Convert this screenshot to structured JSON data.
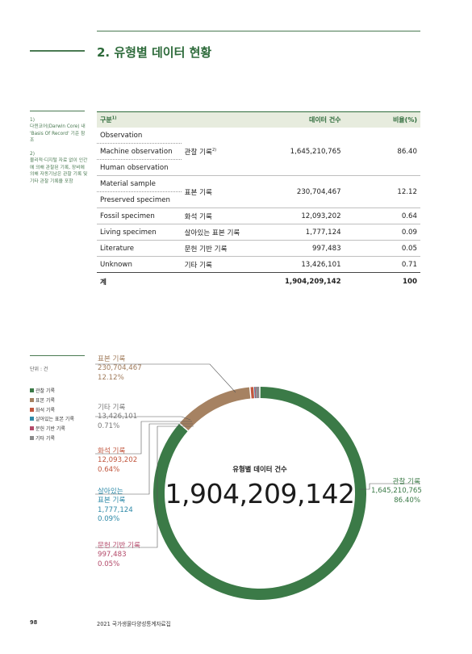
{
  "section": {
    "title": "2. 유형별 데이터 현황"
  },
  "notes": {
    "n1_num": "1)",
    "n1_text": "다윈코어(Darwin Core) 내 'Basis Of Record' 기준 참조",
    "n2_num": "2)",
    "n2_text": "물리적·디지털 자료 없이 인간에 의해 관찰된 기록, 장비에 의해 자동기남은 관찰 기록 및 기타 관찰 기록을 포함"
  },
  "table": {
    "headers": {
      "category": "구분",
      "category_sup": "1)",
      "count": "데이터 건수",
      "ratio": "비율(%)"
    },
    "obs_rows": [
      "Observation",
      "Machine observation",
      "Human observation"
    ],
    "obs_kor": "관찰 기록",
    "obs_kor_sup": "2)",
    "obs_count": "1,645,210,765",
    "obs_ratio": "86.40",
    "spec_rows": [
      "Material sample",
      "Preserved specimen"
    ],
    "spec_kor": "표본 기록",
    "spec_count": "230,704,467",
    "spec_ratio": "12.12",
    "rows": [
      {
        "en": "Fossil specimen",
        "kor": "화석 기록",
        "count": "12,093,202",
        "ratio": "0.64"
      },
      {
        "en": "Living specimen",
        "kor": "살아있는 표본 기록",
        "count": "1,777,124",
        "ratio": "0.09"
      },
      {
        "en": "Literature",
        "kor": "문헌 기반 기록",
        "count": "997,483",
        "ratio": "0.05"
      },
      {
        "en": "Unknown",
        "kor": "기타 기록",
        "count": "13,426,101",
        "ratio": "0.71"
      }
    ],
    "total": {
      "label": "계",
      "count": "1,904,209,142",
      "ratio": "100"
    }
  },
  "chart_data": {
    "type": "pie",
    "unit": "단위 : 건",
    "center_title": "유형별 데이터 건수",
    "center_total": "1,904,209,142",
    "start_angle_deg": 0,
    "slices": [
      {
        "name": "관찰 기록",
        "value": 1645210765,
        "value_label": "1,645,210,765",
        "pct_label": "86.40%",
        "color": "#3b7a47"
      },
      {
        "name": "표본 기록",
        "value": 230704467,
        "value_label": "230,704,467",
        "pct_label": "12.12%",
        "color": "#a68262"
      },
      {
        "name": "화석 기록",
        "value": 12093202,
        "value_label": "12,093,202",
        "pct_label": "0.64%",
        "color": "#c1573f"
      },
      {
        "name": "살아있는 표본 기록",
        "value": 1777124,
        "value_label": "1,777,124",
        "pct_label": "0.09%",
        "color": "#2f8aa8"
      },
      {
        "name": "문헌 기반 기록",
        "value": 997483,
        "value_label": "997,483",
        "pct_label": "0.05%",
        "color": "#b34a6a"
      },
      {
        "name": "기타 기록",
        "value": 13426101,
        "value_label": "13,426,101",
        "pct_label": "0.71%",
        "color": "#8a8a8a"
      }
    ],
    "callout_names": {
      "obs": "관찰 기록",
      "spec": "표본 기록",
      "etc": "기타 기록",
      "fossil": "화석 기록",
      "living_1": "살아있는",
      "living_2": "표본 기록",
      "lit": "문헌 기반 기록"
    },
    "legend": [
      "관찰 기록",
      "표본 기록",
      "화석 기록",
      "살아있는 표본 기록",
      "문헌 기반 기록",
      "기타 기록"
    ]
  },
  "footer": {
    "page_number": "98",
    "publication": "2021 국가생물다양성통계자료집"
  }
}
